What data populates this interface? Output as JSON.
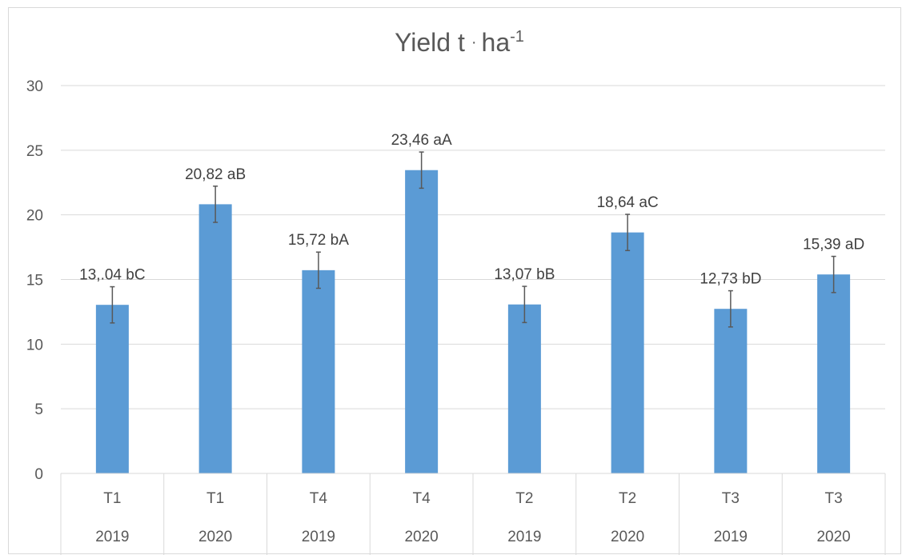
{
  "chart_data": {
    "type": "bar",
    "title": {
      "main": "Yield t",
      "dot": "·",
      "unit": "ha",
      "sup": "-1"
    },
    "xlabel": "",
    "ylabel": "",
    "ylim": [
      0,
      30
    ],
    "yticks": [
      0,
      5,
      10,
      15,
      20,
      25,
      30
    ],
    "grid": true,
    "legend": "none",
    "categories": [
      {
        "treatment": "T1",
        "year": "2019"
      },
      {
        "treatment": "T1",
        "year": "2020"
      },
      {
        "treatment": "T4",
        "year": "2019"
      },
      {
        "treatment": "T4",
        "year": "2020"
      },
      {
        "treatment": "T2",
        "year": "2019"
      },
      {
        "treatment": "T2",
        "year": "2020"
      },
      {
        "treatment": "T3",
        "year": "2019"
      },
      {
        "treatment": "T3",
        "year": "2020"
      }
    ],
    "values": [
      13.04,
      20.82,
      15.72,
      23.46,
      13.07,
      18.64,
      12.73,
      15.39
    ],
    "error": [
      1.4,
      1.4,
      1.4,
      1.4,
      1.4,
      1.4,
      1.4,
      1.4
    ],
    "data_labels": [
      "13,.04 bC",
      "20,82 aB",
      "15,72 bA",
      "23,46 aA",
      "13,07 bB",
      "18,64 aC",
      "12,73 bD",
      "15,39 aD"
    ],
    "colors": {
      "bar": "#5B9BD5",
      "error": "#595959",
      "grid": "#d9d9d9",
      "text": "#595959"
    }
  }
}
